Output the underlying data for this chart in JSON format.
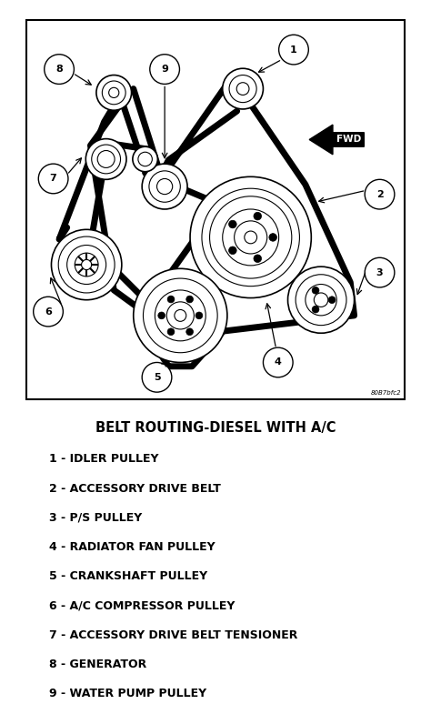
{
  "title": "BELT ROUTING-DIESEL WITH A/C",
  "legend_items": [
    "1 - IDLER PULLEY",
    "2 - ACCESSORY DRIVE BELT",
    "3 - P/S PULLEY",
    "4 - RADIATOR FAN PULLEY",
    "5 - CRANKSHAFT PULLEY",
    "6 - A/C COMPRESSOR PULLEY",
    "7 - ACCESSORY DRIVE BELT TENSIONER",
    "8 - GENERATOR",
    "9 - WATER PUMP PULLEY"
  ],
  "bg_color": "#ffffff",
  "diagram_bg": "#ffffff",
  "border_color": "#000000",
  "text_color": "#000000",
  "line_color": "#000000",
  "figsize": [
    4.74,
    7.96
  ],
  "dpi": 100,
  "ref_code": "80B7bfc2"
}
